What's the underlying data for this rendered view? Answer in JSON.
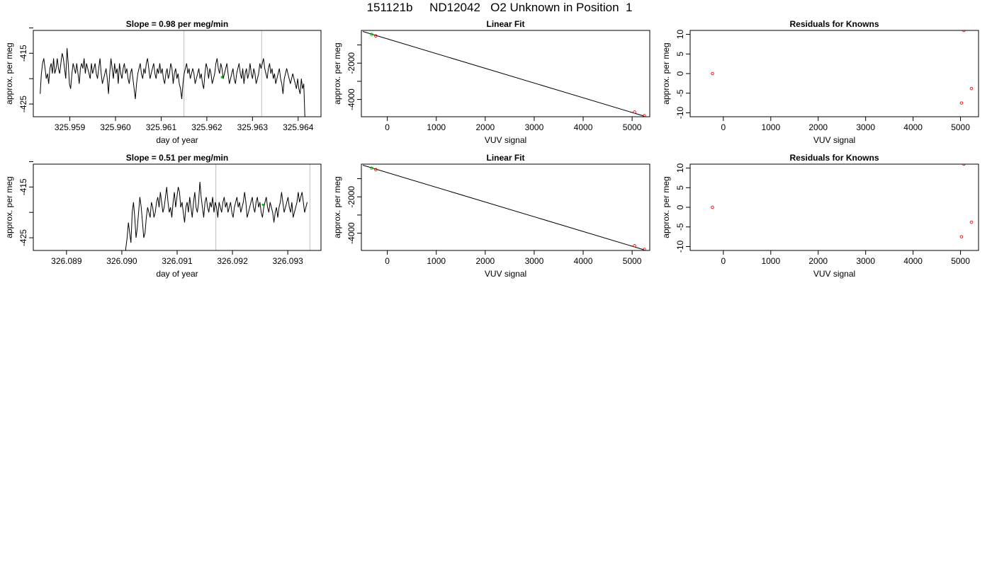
{
  "page": {
    "title": "151121b     ND12042   O2 Unknown in Position  1"
  },
  "chart_data": [
    {
      "type": "line",
      "title": "Slope =  0.98  per meg/min",
      "xlabel": "day of year",
      "ylabel": "approx. per meg",
      "xlim": [
        325.9582,
        325.9645
      ],
      "ylim": [
        -427.5,
        -410.5
      ],
      "xticks": [
        325.959,
        325.96,
        325.961,
        325.962,
        325.963,
        325.964
      ],
      "xtick_labels": [
        "325.959",
        "325.960",
        "325.961",
        "325.962",
        "325.963",
        "325.964"
      ],
      "yticks": [
        -425,
        -420,
        -415,
        -410
      ],
      "ytick_labels": [
        "-425",
        "",
        "-415",
        ""
      ],
      "vlines": [
        325.9615,
        325.9632
      ],
      "colors": {
        "line": "#000000",
        "vline": "#bebebe",
        "marker": "#00cc00"
      },
      "highlight_points": [
        {
          "x": 325.96233,
          "y": -419.7
        }
      ],
      "series": [
        {
          "x_start": 325.95835,
          "x_end": 325.96415,
          "values": [
            -423,
            -419,
            -417,
            -416,
            -418,
            -420,
            -419,
            -421,
            -418,
            -417,
            -419,
            -416,
            -419,
            -418,
            -416,
            -418,
            -419,
            -417,
            -415,
            -416,
            -418,
            -420,
            -414,
            -417,
            -421,
            -422,
            -419,
            -417,
            -418,
            -419,
            -417,
            -419,
            -421,
            -418,
            -417,
            -418,
            -416,
            -419,
            -417,
            -418,
            -419,
            -420,
            -417,
            -419,
            -418,
            -417,
            -419,
            -420,
            -418,
            -416,
            -419,
            -421,
            -420,
            -419,
            -418,
            -420,
            -423,
            -419,
            -416,
            -418,
            -420,
            -417,
            -419,
            -418,
            -421,
            -417,
            -419,
            -420,
            -418,
            -417,
            -419,
            -418,
            -420,
            -421,
            -419,
            -418,
            -420,
            -422,
            -424,
            -421,
            -419,
            -418,
            -417,
            -419,
            -420,
            -418,
            -419,
            -417,
            -416,
            -418,
            -420,
            -419,
            -418,
            -417,
            -419,
            -420,
            -418,
            -419,
            -417,
            -419,
            -418,
            -420,
            -421,
            -419,
            -418,
            -420,
            -419,
            -417,
            -418,
            -421,
            -419,
            -418,
            -420,
            -419,
            -421,
            -422,
            -424,
            -421,
            -419,
            -418,
            -417,
            -419,
            -418,
            -420,
            -419,
            -418,
            -419,
            -421,
            -420,
            -419,
            -418,
            -420,
            -419,
            -421,
            -422,
            -419,
            -417,
            -418,
            -420,
            -418,
            -419,
            -421,
            -420,
            -419,
            -417,
            -416,
            -418,
            -419,
            -417,
            -418,
            -420,
            -419,
            -418,
            -417,
            -419,
            -421,
            -420,
            -419,
            -418,
            -420,
            -421,
            -419,
            -418,
            -417,
            -419,
            -420,
            -418,
            -421,
            -419,
            -418,
            -420,
            -419,
            -417,
            -419,
            -420,
            -418,
            -419,
            -421,
            -420,
            -419,
            -417,
            -418,
            -417,
            -416,
            -418,
            -419,
            -420,
            -418,
            -417,
            -419,
            -418,
            -420,
            -419,
            -421,
            -420,
            -419,
            -418,
            -420,
            -421,
            -423,
            -420,
            -419,
            -418,
            -419,
            -420,
            -421,
            -420,
            -419,
            -420,
            -421,
            -422,
            -420,
            -422,
            -423,
            -420,
            -422,
            -421,
            -428
          ]
        }
      ]
    },
    {
      "type": "scatter",
      "title": "Linear Fit",
      "xlabel": "VUV signal",
      "ylabel": "approx. per meg",
      "xlim": [
        -530,
        5360
      ],
      "ylim": [
        -4950,
        -200
      ],
      "xticks": [
        0,
        1000,
        2000,
        3000,
        4000,
        5000
      ],
      "xtick_labels": [
        "0",
        "1000",
        "2000",
        "3000",
        "4000",
        "5000"
      ],
      "yticks": [
        -4000,
        -3000,
        -2000,
        -1000
      ],
      "ytick_labels": [
        "-4000",
        "",
        "-2000",
        ""
      ],
      "colors": {
        "line": "#000000",
        "known": "#ff0000",
        "unknown": "#00cc00"
      },
      "fit_line": {
        "x": [
          -500,
          5250
        ],
        "y": [
          -260,
          -4920
        ]
      },
      "series": [
        {
          "x": [
            -235,
            5050,
            5250
          ],
          "y": [
            -500,
            -4690,
            -4890
          ]
        },
        {
          "x": [
            -320
          ],
          "y": [
            -420
          ]
        }
      ]
    },
    {
      "type": "scatter",
      "title": "Residuals for Knowns",
      "xlabel": "VUV signal",
      "ylabel": "approx. per meg",
      "xlim": [
        -700,
        5380
      ],
      "ylim": [
        -11,
        11
      ],
      "xticks": [
        0,
        1000,
        2000,
        3000,
        4000,
        5000
      ],
      "xtick_labels": [
        "0",
        "1000",
        "2000",
        "3000",
        "4000",
        "5000"
      ],
      "yticks": [
        -10,
        -5,
        0,
        5,
        10
      ],
      "ytick_labels": [
        "-10",
        "-5",
        "0",
        "5",
        "10"
      ],
      "colors": {
        "point": "#ff0000"
      },
      "series": [
        {
          "x": [
            -230,
            5020,
            5070,
            5230
          ],
          "y": [
            0,
            -7.5,
            11,
            -3.8
          ]
        }
      ]
    },
    {
      "type": "line",
      "title": "Slope =  0.51  per meg/min",
      "xlabel": "day of year",
      "ylabel": "approx. per meg",
      "xlim": [
        326.0884,
        326.0936
      ],
      "ylim": [
        -427.5,
        -410.5
      ],
      "xticks": [
        326.089,
        326.09,
        326.091,
        326.092,
        326.093
      ],
      "xtick_labels": [
        "326.089",
        "326.090",
        "326.091",
        "326.092",
        "326.093"
      ],
      "yticks": [
        -425,
        -420,
        -415,
        -410
      ],
      "ytick_labels": [
        "-425",
        "",
        "-415",
        ""
      ],
      "vlines": [
        326.0917,
        326.0934
      ],
      "colors": {
        "line": "#000000",
        "vline": "#bebebe",
        "marker": "#00cc00"
      },
      "highlight_points": [
        {
          "x": 326.09255,
          "y": -418.5
        }
      ],
      "series": [
        {
          "x_start": 326.09005,
          "x_end": 326.09335,
          "values": [
            -430,
            -427,
            -425,
            -422,
            -424,
            -426,
            -420,
            -418,
            -421,
            -425,
            -423,
            -420,
            -417,
            -419,
            -422,
            -425,
            -424,
            -421,
            -419,
            -420,
            -421,
            -418,
            -419,
            -421,
            -420,
            -418,
            -417,
            -419,
            -416,
            -418,
            -420,
            -419,
            -417,
            -415,
            -418,
            -420,
            -419,
            -421,
            -418,
            -416,
            -419,
            -417,
            -415,
            -416,
            -419,
            -418,
            -420,
            -422,
            -419,
            -418,
            -420,
            -417,
            -419,
            -421,
            -418,
            -416,
            -419,
            -420,
            -418,
            -414,
            -417,
            -419,
            -421,
            -418,
            -417,
            -419,
            -420,
            -418,
            -419,
            -417,
            -420,
            -418,
            -419,
            -421,
            -418,
            -419,
            -420,
            -418,
            -417,
            -419,
            -418,
            -420,
            -419,
            -418,
            -420,
            -421,
            -419,
            -418,
            -417,
            -419,
            -418,
            -420,
            -419,
            -418,
            -416,
            -418,
            -421,
            -420,
            -419,
            -418,
            -417,
            -419,
            -420,
            -418,
            -417,
            -419,
            -418,
            -420,
            -421,
            -419,
            -418,
            -417,
            -419,
            -420,
            -418,
            -419,
            -420,
            -422,
            -420,
            -419,
            -421,
            -419,
            -418,
            -416,
            -418,
            -420,
            -419,
            -418,
            -417,
            -419,
            -420,
            -418,
            -421,
            -420,
            -419,
            -418,
            -416,
            -418,
            -417,
            -416,
            -418,
            -420,
            -419,
            -418
          ]
        }
      ]
    },
    {
      "type": "scatter",
      "title": "Linear Fit",
      "xlabel": "VUV signal",
      "ylabel": "approx. per meg",
      "xlim": [
        -530,
        5360
      ],
      "ylim": [
        -4950,
        -200
      ],
      "xticks": [
        0,
        1000,
        2000,
        3000,
        4000,
        5000
      ],
      "xtick_labels": [
        "0",
        "1000",
        "2000",
        "3000",
        "4000",
        "5000"
      ],
      "yticks": [
        -4000,
        -3000,
        -2000,
        -1000
      ],
      "ytick_labels": [
        "-4000",
        "",
        "-2000",
        ""
      ],
      "colors": {
        "line": "#000000",
        "known": "#ff0000",
        "unknown": "#00cc00"
      },
      "fit_line": {
        "x": [
          -500,
          5250
        ],
        "y": [
          -260,
          -4920
        ]
      },
      "series": [
        {
          "x": [
            -235,
            5050,
            5250
          ],
          "y": [
            -500,
            -4690,
            -4890
          ]
        },
        {
          "x": [
            -320
          ],
          "y": [
            -420
          ]
        }
      ]
    },
    {
      "type": "scatter",
      "title": "Residuals for Knowns",
      "xlabel": "VUV signal",
      "ylabel": "approx. per meg",
      "xlim": [
        -700,
        5380
      ],
      "ylim": [
        -11,
        11
      ],
      "xticks": [
        0,
        1000,
        2000,
        3000,
        4000,
        5000
      ],
      "xtick_labels": [
        "0",
        "1000",
        "2000",
        "3000",
        "4000",
        "5000"
      ],
      "yticks": [
        -10,
        -5,
        0,
        5,
        10
      ],
      "ytick_labels": [
        "-10",
        "-5",
        "0",
        "5",
        "10"
      ],
      "colors": {
        "point": "#ff0000"
      },
      "series": [
        {
          "x": [
            -230,
            5020,
            5070,
            5230
          ],
          "y": [
            0,
            -7.5,
            11,
            -3.8
          ]
        }
      ]
    }
  ]
}
